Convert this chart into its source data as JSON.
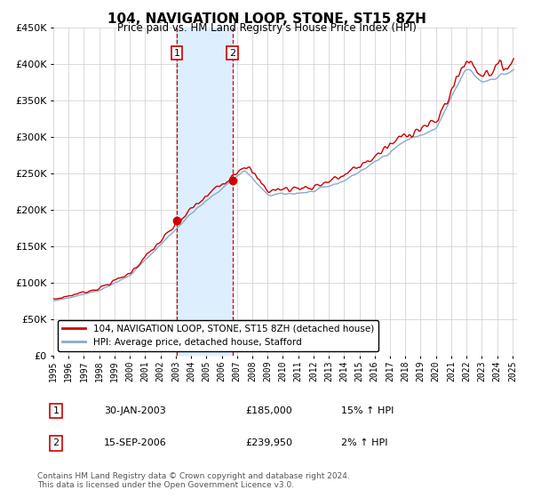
{
  "title": "104, NAVIGATION LOOP, STONE, ST15 8ZH",
  "subtitle": "Price paid vs. HM Land Registry's House Price Index (HPI)",
  "ylim": [
    0,
    450000
  ],
  "yticks": [
    0,
    50000,
    100000,
    150000,
    200000,
    250000,
    300000,
    350000,
    400000,
    450000
  ],
  "year_start": 1995,
  "year_end": 2025,
  "purchase1_date": 2003.08,
  "purchase1_price": 185000,
  "purchase1_label": "1",
  "purchase1_date_str": "30-JAN-2003",
  "purchase1_hpi_pct": "15% ↑ HPI",
  "purchase2_date": 2006.71,
  "purchase2_price": 239950,
  "purchase2_label": "2",
  "purchase2_date_str": "15-SEP-2006",
  "purchase2_hpi_pct": "2% ↑ HPI",
  "red_line_color": "#cc0000",
  "blue_line_color": "#88aacc",
  "shade_color": "#ddeeff",
  "vline_color": "#cc0000",
  "grid_color": "#cccccc",
  "legend_label_red": "104, NAVIGATION LOOP, STONE, ST15 8ZH (detached house)",
  "legend_label_blue": "HPI: Average price, detached house, Stafford",
  "footer": "Contains HM Land Registry data © Crown copyright and database right 2024.\nThis data is licensed under the Open Government Licence v3.0.",
  "background_color": "#ffffff"
}
